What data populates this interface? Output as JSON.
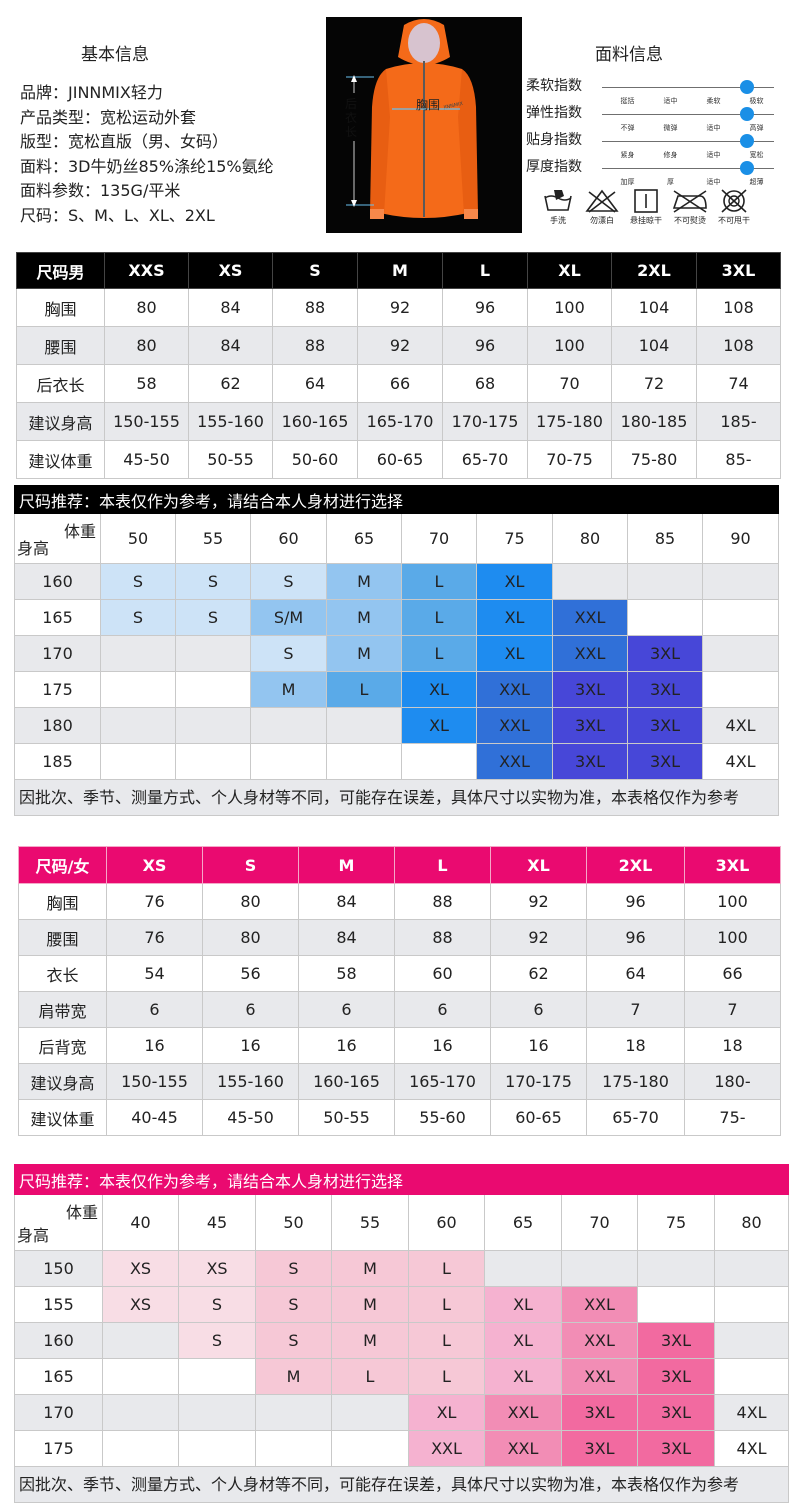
{
  "basic": {
    "title": "基本信息",
    "lines": [
      "品牌：JINNMIX轻力",
      "产品类型：宽松运动外套",
      "版型：宽松直版（男、女码）",
      "面料：3D牛奶丝85%涤纶15%氨纶",
      "面料参数：135G/平米",
      "尺码：S、M、L、XL、2XL"
    ]
  },
  "photo": {
    "chest_label": "胸围",
    "length_label": "后衣长",
    "colors": {
      "jacket": "#f46a19",
      "background": "#050505"
    }
  },
  "fabric": {
    "title": "面料信息",
    "rows": [
      {
        "label": "柔软指数",
        "ticks": [
          "挺括",
          "适中",
          "柔软",
          "极软"
        ],
        "level": 1.0
      },
      {
        "label": "弹性指数",
        "ticks": [
          "不弹",
          "微弹",
          "适中",
          "高弹"
        ],
        "level": 1.0
      },
      {
        "label": "贴身指数",
        "ticks": [
          "紧身",
          "修身",
          "适中",
          "宽松"
        ],
        "level": 1.0
      },
      {
        "label": "厚度指数",
        "ticks": [
          "加厚",
          "厚",
          "适中",
          "超薄"
        ],
        "level": 1.0
      }
    ],
    "care": [
      "手洗",
      "勿漂白",
      "悬挂晾干",
      "不可熨烫",
      "不可甩干"
    ]
  },
  "men_table": {
    "headers": [
      "尺码男",
      "XXS",
      "XS",
      "S",
      "M",
      "L",
      "XL",
      "2XL",
      "3XL"
    ],
    "rows": [
      [
        "胸围",
        "80",
        "84",
        "88",
        "92",
        "96",
        "100",
        "104",
        "108"
      ],
      [
        "腰围",
        "80",
        "84",
        "88",
        "92",
        "96",
        "100",
        "104",
        "108"
      ],
      [
        "后衣长",
        "58",
        "62",
        "64",
        "66",
        "68",
        "70",
        "72",
        "74"
      ],
      [
        "建议身高",
        "150-155",
        "155-160",
        "160-165",
        "165-170",
        "170-175",
        "175-180",
        "180-185",
        "185-"
      ],
      [
        "建议体重",
        "45-50",
        "50-55",
        "50-60",
        "60-65",
        "65-70",
        "70-75",
        "75-80",
        "85-"
      ]
    ]
  },
  "men_recommend": {
    "title": "尺码推荐：本表仅作为参考，请结合本人身材进行选择",
    "weight_label": "体重",
    "height_label": "身高",
    "weights": [
      "50",
      "55",
      "60",
      "65",
      "70",
      "75",
      "80",
      "85",
      "90"
    ],
    "rows": [
      {
        "height": "160",
        "cells": [
          "S",
          "S",
          "S",
          "M",
          "L",
          "XL",
          "",
          "",
          ""
        ]
      },
      {
        "height": "165",
        "cells": [
          "S",
          "S",
          "S/M",
          "M",
          "L",
          "XL",
          "XXL",
          "",
          ""
        ]
      },
      {
        "height": "170",
        "cells": [
          "",
          "",
          "S",
          "M",
          "L",
          "XL",
          "XXL",
          "3XL",
          ""
        ]
      },
      {
        "height": "175",
        "cells": [
          "",
          "",
          "M",
          "L",
          "XL",
          "XXL",
          "3XL",
          "3XL",
          ""
        ]
      },
      {
        "height": "180",
        "cells": [
          "",
          "",
          "",
          "",
          "XL",
          "XXL",
          "3XL",
          "3XL",
          "4XL"
        ]
      },
      {
        "height": "185",
        "cells": [
          "",
          "",
          "",
          "",
          "",
          "XXL",
          "3XL",
          "3XL",
          "4XL"
        ]
      }
    ],
    "note": "因批次、季节、测量方式、个人身材等不同，可能存在误差，具体尺寸以实物为准，本表格仅作为参考"
  },
  "women_table": {
    "headers": [
      "尺码/女",
      "XS",
      "S",
      "M",
      "L",
      "XL",
      "2XL",
      "3XL"
    ],
    "rows": [
      [
        "胸围",
        "76",
        "80",
        "84",
        "88",
        "92",
        "96",
        "100"
      ],
      [
        "腰围",
        "76",
        "80",
        "84",
        "88",
        "92",
        "96",
        "100"
      ],
      [
        "衣长",
        "54",
        "56",
        "58",
        "60",
        "62",
        "64",
        "66"
      ],
      [
        "肩带宽",
        "6",
        "6",
        "6",
        "6",
        "6",
        "7",
        "7"
      ],
      [
        "后背宽",
        "16",
        "16",
        "16",
        "16",
        "16",
        "18",
        "18"
      ],
      [
        "建议身高",
        "150-155",
        "155-160",
        "160-165",
        "165-170",
        "170-175",
        "175-180",
        "180-"
      ],
      [
        "建议体重",
        "40-45",
        "45-50",
        "50-55",
        "55-60",
        "60-65",
        "65-70",
        "75-"
      ]
    ]
  },
  "women_recommend": {
    "title": "尺码推荐：本表仅作为参考，请结合本人身材进行选择",
    "weight_label": "体重",
    "height_label": "身高",
    "weights": [
      "40",
      "45",
      "50",
      "55",
      "60",
      "65",
      "70",
      "75",
      "80"
    ],
    "rows": [
      {
        "height": "150",
        "cells": [
          "XS",
          "XS",
          "S",
          "M",
          "L",
          "",
          "",
          "",
          ""
        ]
      },
      {
        "height": "155",
        "cells": [
          "XS",
          "S",
          "S",
          "M",
          "L",
          "XL",
          "XXL",
          "",
          ""
        ]
      },
      {
        "height": "160",
        "cells": [
          "",
          "S",
          "S",
          "M",
          "L",
          "XL",
          "XXL",
          "3XL",
          ""
        ]
      },
      {
        "height": "165",
        "cells": [
          "",
          "",
          "M",
          "L",
          "L",
          "XL",
          "XXL",
          "3XL",
          ""
        ]
      },
      {
        "height": "170",
        "cells": [
          "",
          "",
          "",
          "",
          "XL",
          "XXL",
          "3XL",
          "3XL",
          "4XL"
        ]
      },
      {
        "height": "175",
        "cells": [
          "",
          "",
          "",
          "",
          "XXL",
          "XXL",
          "3XL",
          "3XL",
          "4XL"
        ]
      }
    ],
    "note": "因批次、季节、测量方式、个人身材等不同，可能存在误差，具体尺寸以实物为准，本表格仅作为参考"
  }
}
